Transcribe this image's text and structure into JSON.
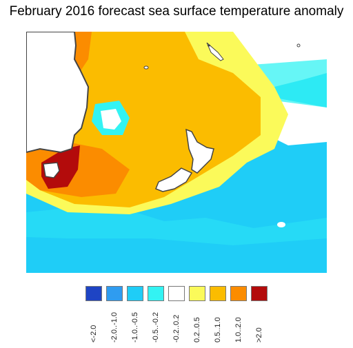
{
  "title": "February 2016 forecast sea surface temperature anomaly",
  "legend": {
    "bins": [
      {
        "label": "<-2.0",
        "color": "#1e44c4"
      },
      {
        "label": "-2.0..-1.0",
        "color": "#2f9cf0"
      },
      {
        "label": "-1.0..-0.5",
        "color": "#1fcdf7"
      },
      {
        "label": "-0.5..-0.2",
        "color": "#33f3f3"
      },
      {
        "label": "-0.2..0.2",
        "color": "#ffffff"
      },
      {
        "label": "0.2..0.5",
        "color": "#fbfa5a"
      },
      {
        "label": "0.5..1.0",
        "color": "#fbbc00"
      },
      {
        "label": "1.0..2.0",
        "color": "#fb8c00"
      },
      {
        "label": ">2.0",
        "color": "#b30b0b"
      }
    ]
  },
  "map": {
    "region": "Tasman Sea / New Zealand",
    "colors": {
      "ocean_warm": "#fbbc00",
      "ocean_hot": "#fb8c00",
      "ocean_extreme": "#b30b0b",
      "ocean_yellow": "#fbfa5a",
      "ocean_cyan": "#33f3f3",
      "ocean_blue": "#1fcdf7",
      "land": "#ffffff",
      "coast": "#444444"
    }
  }
}
